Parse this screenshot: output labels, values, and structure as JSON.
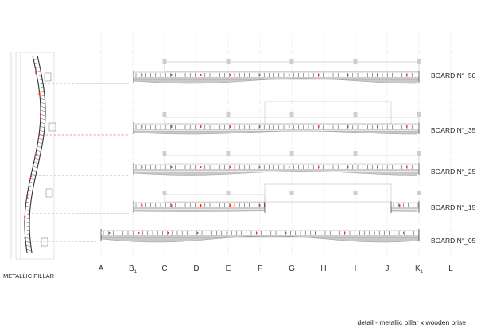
{
  "caption": "detail - metallic pillar x wooden brise",
  "pillar_label": "METALLIC PILLAR",
  "boards": [
    {
      "label": "BOARD N°_50"
    },
    {
      "label": "BOARD N°_35"
    },
    {
      "label": "BOARD N°_25"
    },
    {
      "label": "BOARD N°_15"
    },
    {
      "label": "BOARD N°_05"
    }
  ],
  "axis": [
    {
      "letter": "A",
      "sub": ""
    },
    {
      "letter": "B",
      "sub": "1"
    },
    {
      "letter": "C",
      "sub": ""
    },
    {
      "letter": "D",
      "sub": ""
    },
    {
      "letter": "E",
      "sub": ""
    },
    {
      "letter": "F",
      "sub": ""
    },
    {
      "letter": "G",
      "sub": ""
    },
    {
      "letter": "H",
      "sub": ""
    },
    {
      "letter": "I",
      "sub": ""
    },
    {
      "letter": "J",
      "sub": ""
    },
    {
      "letter": "K",
      "sub": "1"
    },
    {
      "letter": "L",
      "sub": ""
    }
  ],
  "colors": {
    "line": "#9a9a9a",
    "dark": "#333333",
    "red": "#e03a2e",
    "board": "#c9c9c9"
  }
}
